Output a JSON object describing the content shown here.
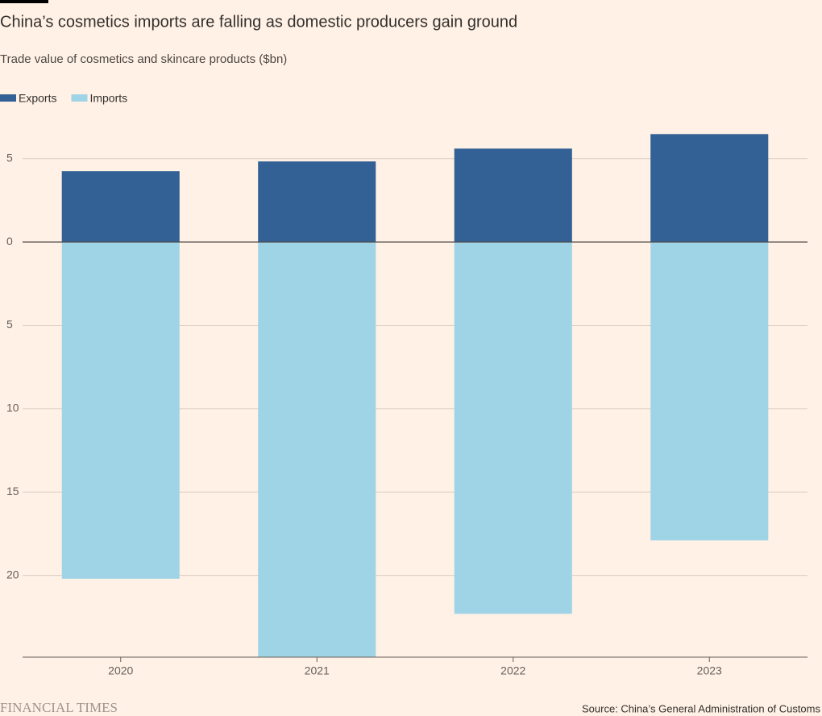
{
  "chart_data": {
    "type": "bar",
    "title": "China’s cosmetics imports are falling as domestic producers gain ground",
    "subtitle": "Trade value of cosmetics and skincare products ($bn)",
    "source": "Source: China’s General Administration of Customs",
    "brand": "FINANCIAL TIMES",
    "categories": [
      "2020",
      "2021",
      "2022",
      "2023"
    ],
    "series": [
      {
        "name": "Exports",
        "color": "#336195",
        "values": [
          4.25,
          4.83,
          5.6,
          6.47
        ]
      },
      {
        "name": "Imports",
        "color": "#9fd4e6",
        "values": [
          -20.2,
          -24.9,
          -22.3,
          -17.9
        ]
      }
    ],
    "ylim": [
      -24.9,
      7.5
    ],
    "yticks": [
      {
        "value": 5,
        "label": "5"
      },
      0,
      {
        "value": -5,
        "label": "5"
      },
      {
        "value": -10,
        "label": "10"
      },
      {
        "value": -15,
        "label": "15"
      },
      {
        "value": -20,
        "label": "20"
      }
    ],
    "grid": true,
    "legend": "top-left"
  }
}
